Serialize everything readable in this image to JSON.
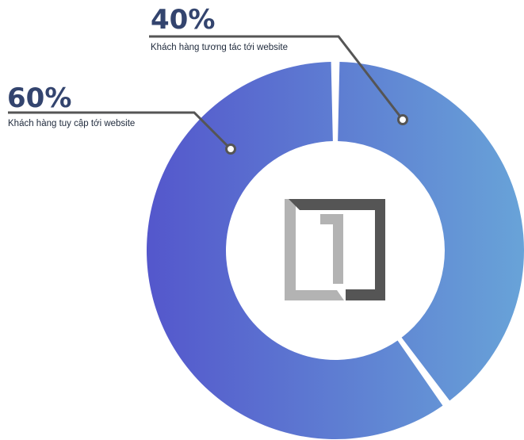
{
  "chart_data": {
    "type": "pie",
    "style": "donut",
    "categories": [
      "Khách hàng tương tác tới website",
      "Khách hàng tuy cập tới website"
    ],
    "values": [
      40,
      60
    ],
    "value_labels": [
      "40%",
      "60%"
    ],
    "title": "",
    "legend": "none",
    "grid": false
  },
  "colors": {
    "gradient_start": "#5457cc",
    "gradient_end": "#68a3d8",
    "label_number": "#33446e",
    "leader_line": "#555555",
    "logo_dark": "#555555",
    "logo_light": "#b3b3b3"
  },
  "center_logo": {
    "icon": "digit-one-logo-icon"
  }
}
